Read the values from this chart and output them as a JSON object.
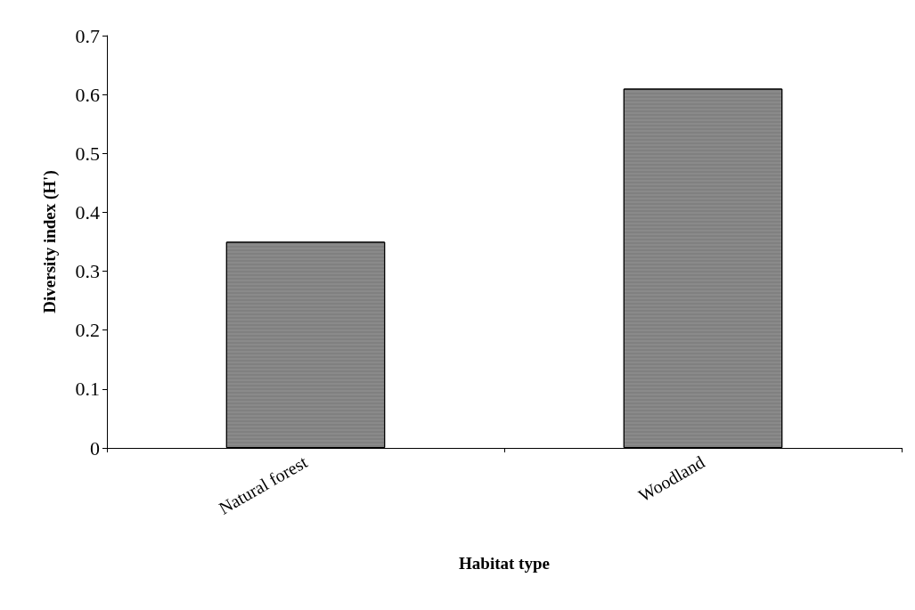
{
  "chart_data": {
    "type": "bar",
    "xlabel": "Habitat type",
    "ylabel": "Diversity index (H')",
    "categories": [
      "Natural forest",
      "Woodland"
    ],
    "values": [
      0.35,
      0.61
    ],
    "color": "#8a8a8a",
    "ylim": [
      0,
      0.7
    ],
    "yticks": [
      0,
      0.1,
      0.2,
      0.3,
      0.4,
      0.5,
      0.6,
      0.7
    ],
    "grid": false
  }
}
